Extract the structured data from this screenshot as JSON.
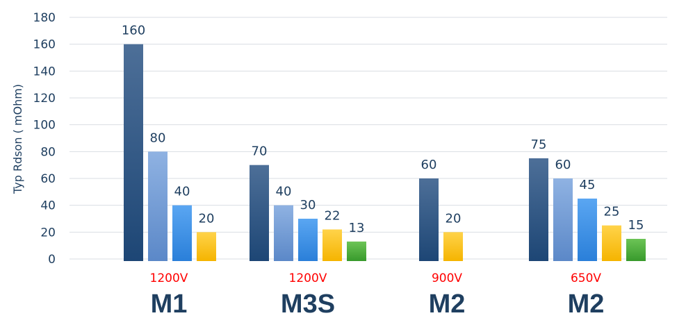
{
  "chart_data": {
    "type": "bar",
    "ylabel": "Typ Rdson ( mOhm)",
    "ylim": [
      0,
      180
    ],
    "yticks": [
      0,
      20,
      40,
      60,
      80,
      100,
      120,
      140,
      160,
      180
    ],
    "grid": true,
    "colors": [
      "#2b5480",
      "#6f9ad6",
      "#3a8ee6",
      "#ffc21a",
      "#4aaa3c"
    ],
    "groups": [
      {
        "name": "M1",
        "voltage": "1200V",
        "values": [
          160,
          80,
          40,
          20
        ]
      },
      {
        "name": "M3S",
        "voltage": "1200V",
        "values": [
          70,
          40,
          30,
          22,
          13
        ]
      },
      {
        "name": "M2",
        "voltage": "900V",
        "values": [
          60,
          null,
          null,
          20
        ]
      },
      {
        "name": "M2",
        "voltage": "650V",
        "values": [
          75,
          60,
          45,
          25,
          15
        ]
      }
    ]
  }
}
